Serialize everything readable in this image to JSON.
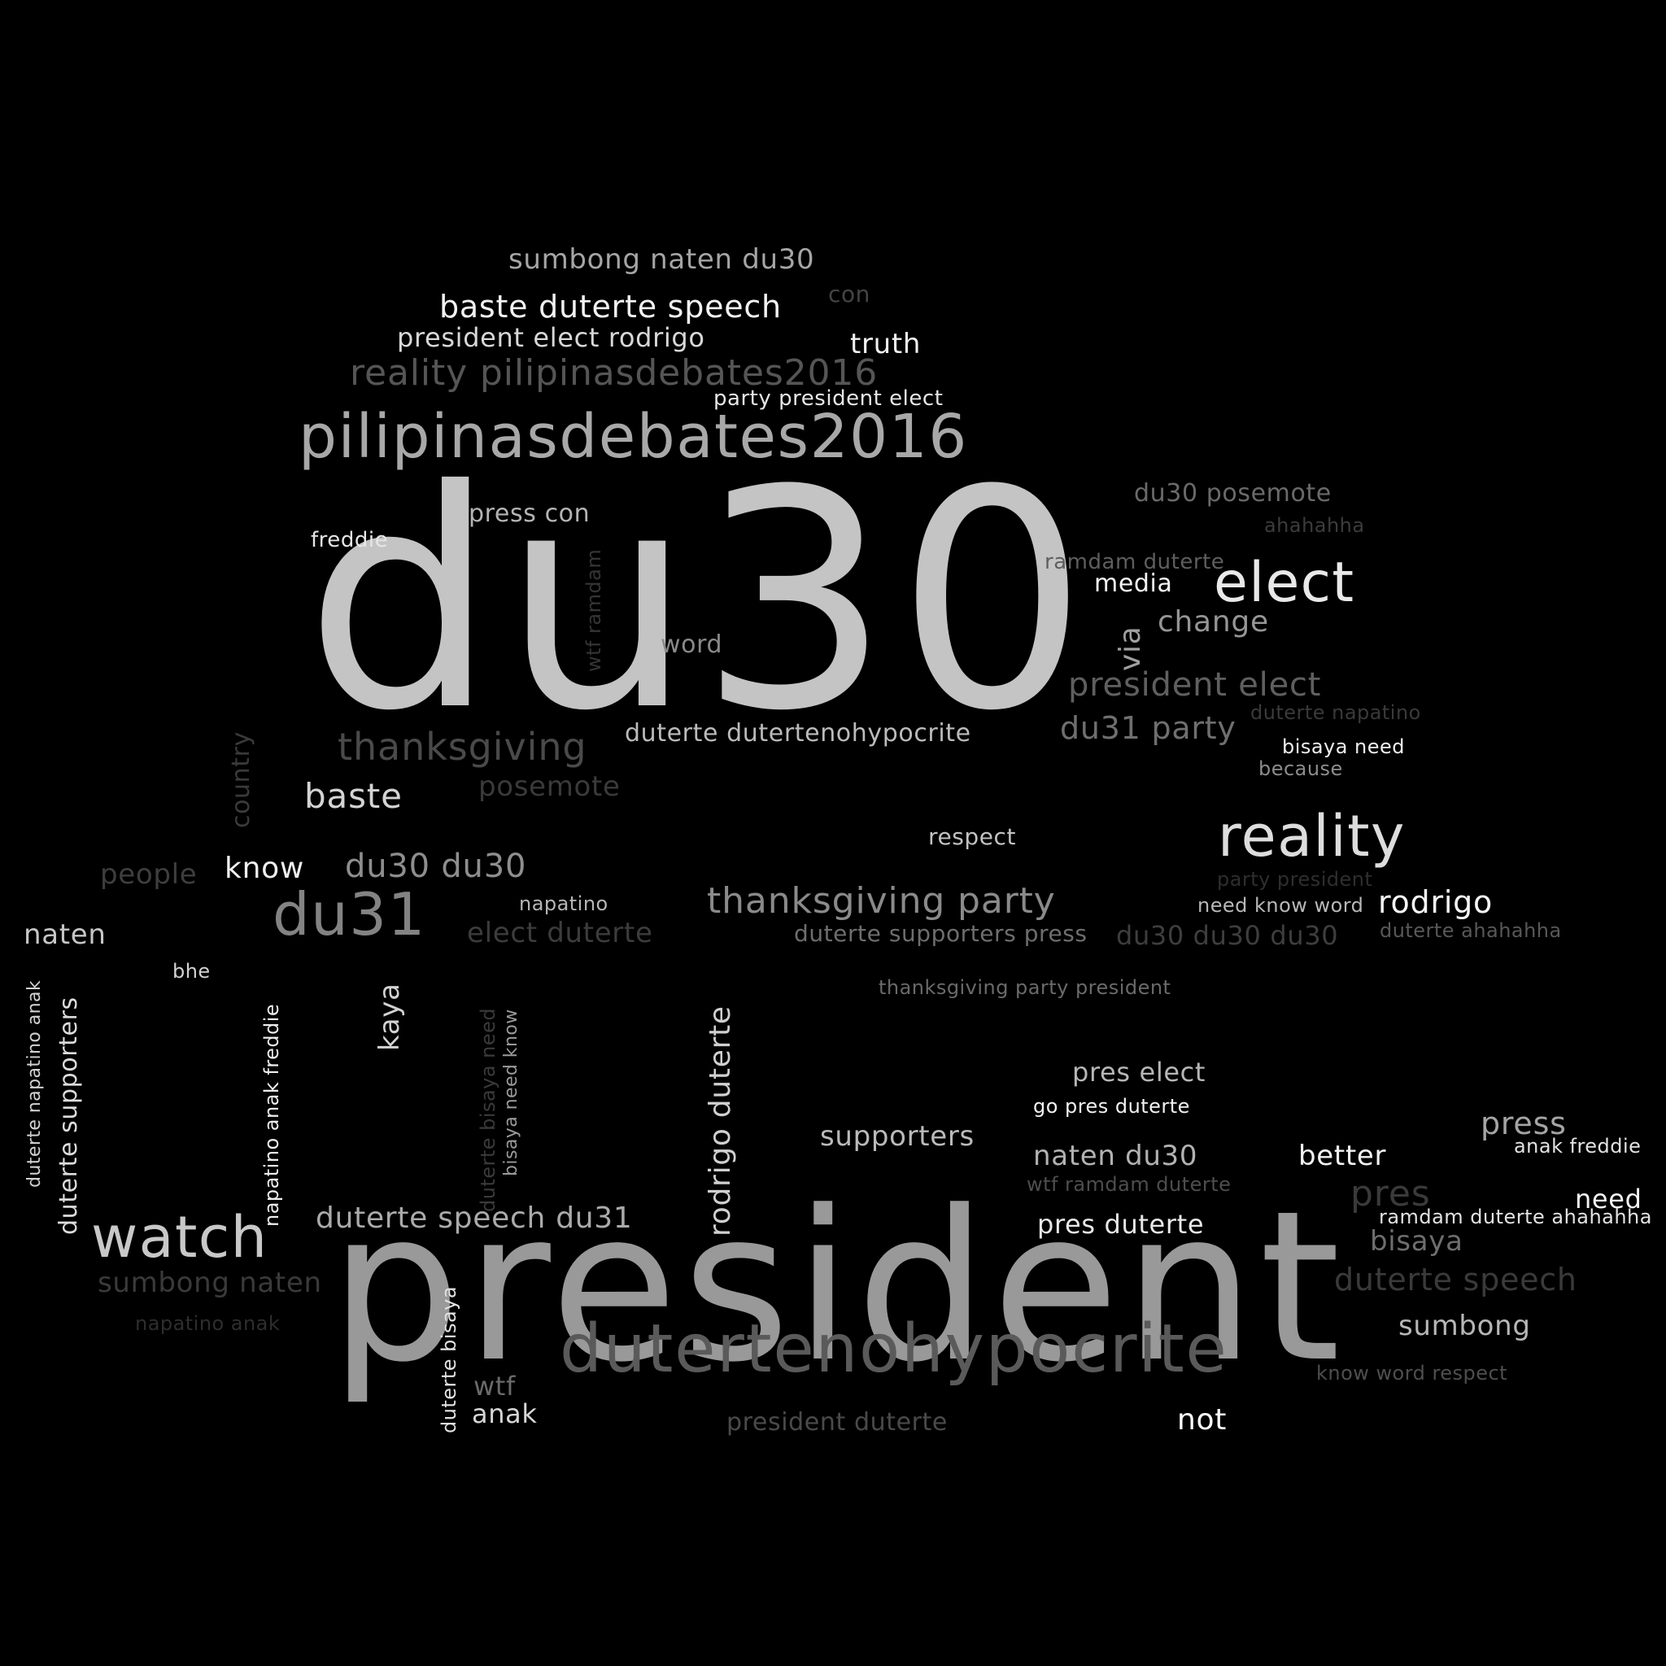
{
  "background_color": "#000000",
  "words": [
    {
      "text": "du30",
      "color": "#c4c4c4"
    },
    {
      "text": "president",
      "color": "#999999"
    },
    {
      "text": "pilipinasdebates2016",
      "color": "#a8a8a8"
    },
    {
      "text": "dutertenohypocrite",
      "color": "#5a5a5a"
    },
    {
      "text": "reality",
      "color": "#dddddd"
    },
    {
      "text": "elect",
      "color": "#e8e8e8"
    },
    {
      "text": "watch",
      "color": "#c8c8c8"
    },
    {
      "text": "du31",
      "color": "#838383"
    },
    {
      "text": "reality pilipinasdebates2016",
      "color": "#555555"
    },
    {
      "text": "baste duterte speech",
      "color": "#f2f2f2"
    },
    {
      "text": "sumbong naten du30",
      "color": "#a5a5a5"
    },
    {
      "text": "president elect rodrigo",
      "color": "#d8d8d8"
    },
    {
      "text": "truth",
      "color": "#efefef"
    },
    {
      "text": "con",
      "color": "#444444"
    },
    {
      "text": "party president elect",
      "color": "#e6e6e6"
    },
    {
      "text": "thanksgiving party",
      "color": "#8a8a8a"
    },
    {
      "text": "thanksgiving",
      "color": "#4a4a4a"
    },
    {
      "text": "baste",
      "color": "#d4d4d4"
    },
    {
      "text": "rodrigo duterte",
      "color": "#d0d0d0"
    },
    {
      "text": "duterte speech du31",
      "color": "#aaaaaa"
    },
    {
      "text": "president elect",
      "color": "#5f5f5f"
    },
    {
      "text": "du31 party",
      "color": "#6f6f6f"
    },
    {
      "text": "change",
      "color": "#959595"
    },
    {
      "text": "via",
      "color": "#a0a0a0"
    },
    {
      "text": "media",
      "color": "#f4f4f4"
    },
    {
      "text": "ramdam duterte",
      "color": "#5e5e5e"
    },
    {
      "text": "du30 posemote",
      "color": "#6a6a6a"
    },
    {
      "text": "ahahahha",
      "color": "#3c3c3c"
    },
    {
      "text": "press con",
      "color": "#b4b4b4"
    },
    {
      "text": "freddie",
      "color": "#e6e6e6"
    },
    {
      "text": "word",
      "color": "#8a8a8a"
    },
    {
      "text": "wtf ramdam",
      "color": "#353535"
    },
    {
      "text": "duterte dutertenohypocrite",
      "color": "#bbbbbb"
    },
    {
      "text": "posemote",
      "color": "#3a3a3a"
    },
    {
      "text": "country",
      "color": "#3a3a3a"
    },
    {
      "text": "know",
      "color": "#f0f0f0"
    },
    {
      "text": "people",
      "color": "#3e3e3e"
    },
    {
      "text": "du30 du30",
      "color": "#8e8e8e"
    },
    {
      "text": "napatino",
      "color": "#b6b6b6"
    },
    {
      "text": "elect duterte",
      "color": "#3c3c3c"
    },
    {
      "text": "naten",
      "color": "#c6c6c6"
    },
    {
      "text": "bhe",
      "color": "#d2d2d2"
    },
    {
      "text": "duterte supporters press",
      "color": "#6e6e6e"
    },
    {
      "text": "du30 du30 du30",
      "color": "#3e3e3e"
    },
    {
      "text": "respect",
      "color": "#c2c2c2"
    },
    {
      "text": "party president",
      "color": "#2e2e2e"
    },
    {
      "text": "need know word",
      "color": "#b8b8b8"
    },
    {
      "text": "rodrigo",
      "color": "#f6f6f6"
    },
    {
      "text": "duterte ahahahha",
      "color": "#585858"
    },
    {
      "text": "duterte napatino",
      "color": "#3a3a3a"
    },
    {
      "text": "bisaya need",
      "color": "#eeeeee"
    },
    {
      "text": "because",
      "color": "#8c8c8c"
    },
    {
      "text": "thanksgiving party president",
      "color": "#6a6a6a"
    },
    {
      "text": "pres elect",
      "color": "#b6b6b6"
    },
    {
      "text": "go pres duterte",
      "color": "#f2f2f2"
    },
    {
      "text": "supporters",
      "color": "#bababa"
    },
    {
      "text": "naten du30",
      "color": "#b2b2b2"
    },
    {
      "text": "better",
      "color": "#f2f2f2"
    },
    {
      "text": "press",
      "color": "#a4a4a4"
    },
    {
      "text": "anak freddie",
      "color": "#e2e2e2"
    },
    {
      "text": "wtf ramdam duterte",
      "color": "#4e4e4e"
    },
    {
      "text": "pres",
      "color": "#3a3a3a"
    },
    {
      "text": "need",
      "color": "#f4f4f4"
    },
    {
      "text": "ramdam duterte ahahahha",
      "color": "#e2e2e2"
    },
    {
      "text": "pres duterte",
      "color": "#e8e8e8"
    },
    {
      "text": "bisaya",
      "color": "#6e6e6e"
    },
    {
      "text": "duterte speech",
      "color": "#3a3a3a"
    },
    {
      "text": "sumbong",
      "color": "#b6b6b6"
    },
    {
      "text": "know word respect",
      "color": "#4e4e4e"
    },
    {
      "text": "sumbong naten",
      "color": "#3a3a3a"
    },
    {
      "text": "napatino anak",
      "color": "#2e2e2e"
    },
    {
      "text": "kaya",
      "color": "#d2d2d2"
    },
    {
      "text": "duterte supporters",
      "color": "#dcdcdc"
    },
    {
      "text": "duterte napatino anak",
      "color": "#d2d2d2"
    },
    {
      "text": "napatino anak freddie",
      "color": "#eeeeee"
    },
    {
      "text": "duterte bisaya need",
      "color": "#3a3a3a"
    },
    {
      "text": "bisaya need know",
      "color": "#9a9a9a"
    },
    {
      "text": "duterte bisaya",
      "color": "#e2e2e2"
    },
    {
      "text": "wtf",
      "color": "#6a6a6a"
    },
    {
      "text": "anak",
      "color": "#d6d6d6"
    },
    {
      "text": "president duterte",
      "color": "#4a4a4a"
    },
    {
      "text": "not",
      "color": "#ffffff"
    }
  ]
}
